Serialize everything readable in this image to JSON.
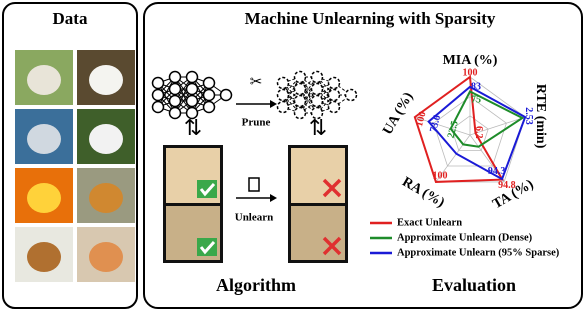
{
  "data_panel": {
    "title": "Data"
  },
  "main": {
    "title": "Machine Unlearning with Sparsity"
  },
  "algorithm": {
    "prune": "Prune",
    "unlearn": "Unlearn",
    "label": "Algorithm"
  },
  "evaluation": {
    "label": "Evaluation",
    "radar": {
      "axes": [
        "MIA (%)",
        "RTE (min)",
        "TA (%)",
        "RA (%)",
        "UA (%)"
      ],
      "series": [
        {
          "name": "Exact Unlearn",
          "color": "#e02020",
          "values": [
            100,
            6.2,
            94.8,
            100,
            100
          ]
        },
        {
          "name": "Approximate Unlearn (Dense)",
          "color": "#1e8c2a",
          "values": [
            75,
            null,
            null,
            null,
            22.5
          ]
        },
        {
          "name": "Approximate Unlearn (95% Sparse)",
          "color": "#1a1ad6",
          "values": [
            83,
            2.53,
            94.3,
            null,
            73.6
          ]
        }
      ]
    }
  }
}
